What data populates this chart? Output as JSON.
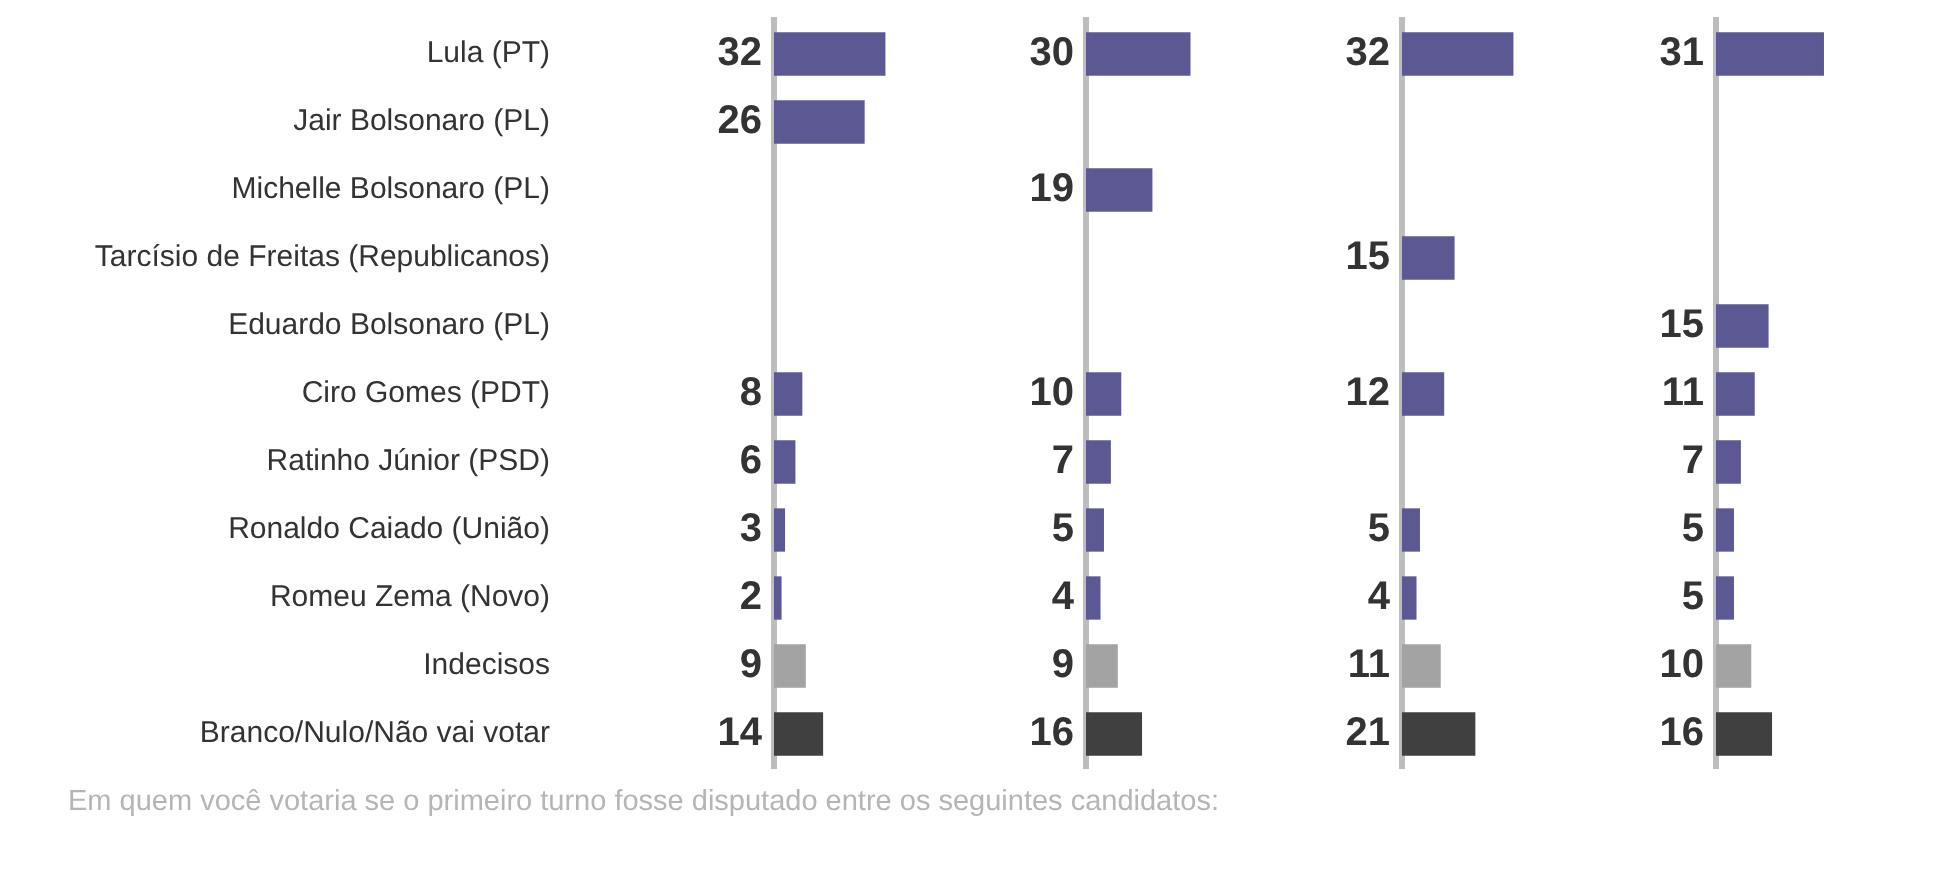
{
  "chart_data": [
    {
      "type": "bar",
      "orientation": "horizontal",
      "categories": [
        "Lula (PT)",
        "Jair Bolsonaro (PL)",
        "Michelle Bolsonaro (PL)",
        "Tarcísio de Freitas (Republicanos)",
        "Eduardo Bolsonaro (PL)",
        "Ciro Gomes (PDT)",
        "Ratinho Júnior (PSD)",
        "Ronaldo Caiado (União)",
        "Romeu Zema (Novo)",
        "Indecisos",
        "Branco/Nulo/Não vai votar"
      ],
      "values": [
        32,
        26,
        null,
        null,
        null,
        8,
        6,
        3,
        2,
        9,
        14
      ],
      "colors": [
        "#5b5893",
        "#5b5893",
        "#5b5893",
        "#5b5893",
        "#5b5893",
        "#5b5893",
        "#5b5893",
        "#5b5893",
        "#5b5893",
        "#a3a3a3",
        "#404040"
      ],
      "data_labels": true,
      "tick_labels": "y",
      "annotations": [
        "Em quem você votaria se o primeiro turno fosse disputado entre os seguintes candidatos:"
      ]
    },
    {
      "type": "bar",
      "orientation": "horizontal",
      "values": [
        30,
        null,
        19,
        null,
        null,
        10,
        7,
        5,
        4,
        9,
        16
      ],
      "colors": [
        "#5b5893",
        "#5b5893",
        "#5b5893",
        "#5b5893",
        "#5b5893",
        "#5b5893",
        "#5b5893",
        "#5b5893",
        "#5b5893",
        "#a3a3a3",
        "#404040"
      ],
      "data_labels": true,
      "tick_labels": false
    },
    {
      "type": "bar",
      "orientation": "horizontal",
      "values": [
        32,
        null,
        null,
        15,
        null,
        12,
        null,
        5,
        4,
        11,
        21
      ],
      "colors": [
        "#5b5893",
        "#5b5893",
        "#5b5893",
        "#5b5893",
        "#5b5893",
        "#5b5893",
        "#5b5893",
        "#5b5893",
        "#5b5893",
        "#a3a3a3",
        "#404040"
      ],
      "data_labels": true,
      "tick_labels": false
    },
    {
      "type": "bar",
      "orientation": "horizontal",
      "values": [
        31,
        null,
        null,
        null,
        15,
        11,
        7,
        5,
        5,
        10,
        16
      ],
      "colors": [
        "#5b5893",
        "#5b5893",
        "#5b5893",
        "#5b5893",
        "#5b5893",
        "#5b5893",
        "#5b5893",
        "#5b5893",
        "#5b5893",
        "#a3a3a3",
        "#404040"
      ],
      "data_labels": true,
      "tick_labels": false
    }
  ]
}
